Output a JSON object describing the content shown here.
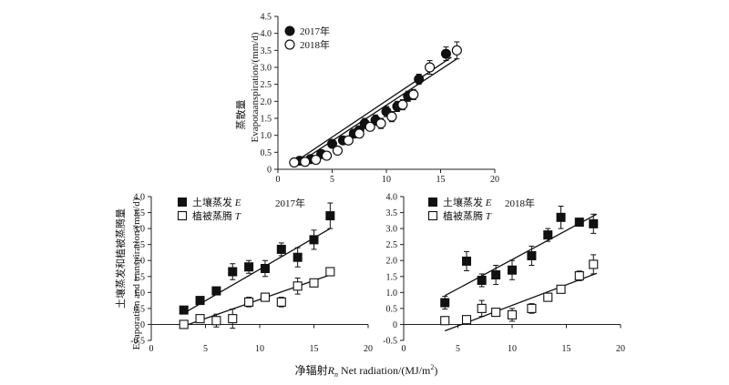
{
  "figure": {
    "x_label": "净辐射Rn Net radiation/(MJ/m²)",
    "x_label_parts": {
      "prefix": "净辐射",
      "symbol": "R",
      "subscript": "n",
      "rest": " Net radiation/(MJ/m",
      "sup": "2",
      "end": ")"
    }
  },
  "chart_data": [
    {
      "type": "scatter",
      "panel": "top",
      "ylabel_cn": "蒸散量",
      "ylabel_en": "Evapotaanspiration/(mm/d)",
      "xlim": [
        0,
        20
      ],
      "ylim": [
        0,
        4.5
      ],
      "x_ticks": [
        "0",
        "5",
        "10",
        "15",
        "20"
      ],
      "y_ticks": [
        "0",
        "0.5",
        "1.0",
        "1.5",
        "2.0",
        "2.5",
        "3.0",
        "3.5",
        "4.0",
        "4.5"
      ],
      "legend_position": "top-left",
      "series": [
        {
          "name": "2017年",
          "marker": "filled-circle",
          "points": [
            [
              2,
              0.25
            ],
            [
              3,
              0.3
            ],
            [
              4,
              0.45
            ],
            [
              5,
              0.75
            ],
            [
              6,
              0.85
            ],
            [
              7,
              1.05
            ],
            [
              7.5,
              1.15
            ],
            [
              8,
              1.35
            ],
            [
              9,
              1.45
            ],
            [
              10,
              1.7
            ],
            [
              11,
              1.85
            ],
            [
              12,
              2.15
            ],
            [
              13,
              2.65
            ],
            [
              15.5,
              3.4
            ]
          ],
          "errors": [
            0.05,
            0.05,
            0.08,
            0.08,
            0.1,
            0.12,
            0.12,
            0.15,
            0.15,
            0.15,
            0.15,
            0.15,
            0.15,
            0.2
          ],
          "fit": [
            [
              1.5,
              0.2
            ],
            [
              16,
              3.3
            ]
          ]
        },
        {
          "name": "2018年",
          "marker": "open-circle",
          "points": [
            [
              1.5,
              0.2
            ],
            [
              2.5,
              0.22
            ],
            [
              3.5,
              0.28
            ],
            [
              4.5,
              0.4
            ],
            [
              5.5,
              0.55
            ],
            [
              6.5,
              0.85
            ],
            [
              7.5,
              1.05
            ],
            [
              8.5,
              1.25
            ],
            [
              9.5,
              1.35
            ],
            [
              10.5,
              1.55
            ],
            [
              11.5,
              1.9
            ],
            [
              12.5,
              2.2
            ],
            [
              14,
              3.0
            ],
            [
              16.5,
              3.5
            ]
          ],
          "errors": [
            0.05,
            0.05,
            0.05,
            0.08,
            0.1,
            0.1,
            0.12,
            0.12,
            0.15,
            0.15,
            0.15,
            0.15,
            0.2,
            0.25
          ],
          "fit": [
            [
              1.5,
              0.1
            ],
            [
              16.5,
              3.25
            ]
          ]
        }
      ]
    },
    {
      "type": "scatter",
      "panel": "bottom-left",
      "annotation": "2017年",
      "ylabel_cn": "土壤蒸发和植被蒸腾量",
      "ylabel_en": "Evaporation and transpiration/(mm/d)",
      "xlim": [
        0,
        20
      ],
      "ylim": [
        -0.5,
        4.0
      ],
      "x_ticks": [
        "0",
        "5",
        "10",
        "15",
        "20"
      ],
      "y_ticks": [
        "-0.5",
        "0",
        "0.5",
        "1.0",
        "1.5",
        "2.0",
        "2.5",
        "3.0",
        "3.5",
        "4.0"
      ],
      "legend_position": "top-left",
      "series": [
        {
          "name": "土壤蒸发E",
          "name_parts": {
            "text": "土壤蒸发",
            "symbol": "E"
          },
          "marker": "filled-square",
          "points": [
            [
              3,
              0.45
            ],
            [
              4.5,
              0.75
            ],
            [
              6,
              1.05
            ],
            [
              7.5,
              1.65
            ],
            [
              9,
              1.8
            ],
            [
              10.5,
              1.75
            ],
            [
              12,
              2.35
            ],
            [
              13.5,
              2.1
            ],
            [
              15,
              2.65
            ],
            [
              16.5,
              3.4
            ]
          ],
          "errors": [
            0.1,
            0.08,
            0.1,
            0.25,
            0.2,
            0.25,
            0.2,
            0.3,
            0.3,
            0.4
          ],
          "fit": [
            [
              3,
              0.35
            ],
            [
              16.5,
              3.0
            ]
          ]
        },
        {
          "name": "植被蒸腾T",
          "name_parts": {
            "text": "植被蒸腾",
            "symbol": "T"
          },
          "marker": "open-square",
          "points": [
            [
              3,
              0.0
            ],
            [
              4.5,
              0.18
            ],
            [
              6,
              0.12
            ],
            [
              7.5,
              0.18
            ],
            [
              9,
              0.7
            ],
            [
              10.5,
              0.85
            ],
            [
              12,
              0.7
            ],
            [
              13.5,
              1.2
            ],
            [
              15,
              1.3
            ],
            [
              16.5,
              1.65
            ]
          ],
          "errors": [
            0.08,
            0.08,
            0.2,
            0.3,
            0.15,
            0.12,
            0.15,
            0.25,
            0.1,
            0.1
          ],
          "fit": [
            [
              3,
              -0.05
            ],
            [
              16.5,
              1.55
            ]
          ]
        }
      ]
    },
    {
      "type": "scatter",
      "panel": "bottom-right",
      "annotation": "2018年",
      "xlim": [
        0,
        20
      ],
      "ylim": [
        -0.5,
        4.0
      ],
      "x_ticks": [
        "0",
        "5",
        "10",
        "15",
        "20"
      ],
      "y_ticks": [
        "-0.5",
        "0",
        "0.5",
        "1.0",
        "1.5",
        "2.0",
        "2.5",
        "3.0",
        "3.5",
        "4.0"
      ],
      "legend_position": "top-left",
      "series": [
        {
          "name": "土壤蒸发E",
          "name_parts": {
            "text": "土壤蒸发",
            "symbol": "E"
          },
          "marker": "filled-square",
          "points": [
            [
              3.8,
              0.68
            ],
            [
              5.8,
              1.98
            ],
            [
              7.2,
              1.38
            ],
            [
              8.5,
              1.55
            ],
            [
              10,
              1.7
            ],
            [
              11.8,
              2.15
            ],
            [
              13.3,
              2.8
            ],
            [
              14.5,
              3.35
            ],
            [
              16.2,
              3.2
            ],
            [
              17.5,
              3.15
            ]
          ],
          "errors": [
            0.2,
            0.3,
            0.2,
            0.3,
            0.3,
            0.3,
            0.2,
            0.35,
            0.1,
            0.3
          ],
          "fit": [
            [
              3.8,
              0.9
            ],
            [
              17.8,
              3.45
            ]
          ]
        },
        {
          "name": "植被蒸腾T",
          "name_parts": {
            "text": "植被蒸腾",
            "symbol": "T"
          },
          "marker": "open-square",
          "points": [
            [
              3.8,
              0.12
            ],
            [
              5.8,
              0.15
            ],
            [
              7.2,
              0.5
            ],
            [
              8.5,
              0.38
            ],
            [
              10,
              0.3
            ],
            [
              11.8,
              0.5
            ],
            [
              13.3,
              0.85
            ],
            [
              14.5,
              1.1
            ],
            [
              16.2,
              1.52
            ],
            [
              17.5,
              1.88
            ]
          ],
          "errors": [
            0.1,
            0.1,
            0.25,
            0.1,
            0.2,
            0.15,
            0.1,
            0.12,
            0.15,
            0.3
          ],
          "fit": [
            [
              3.8,
              -0.2
            ],
            [
              17.8,
              1.6
            ]
          ]
        }
      ]
    }
  ]
}
